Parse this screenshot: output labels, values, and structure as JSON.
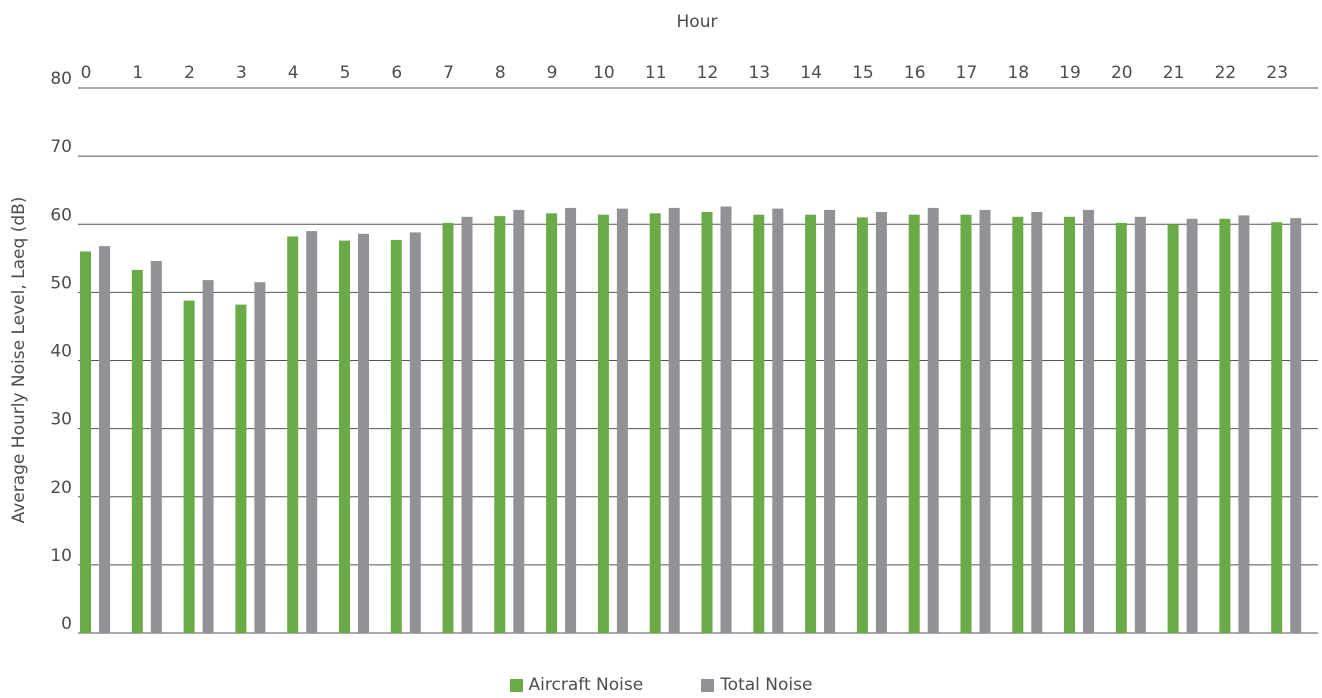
{
  "chart_data": {
    "type": "bar",
    "xlabel": "Hour",
    "ylabel": "Average Hourly Noise Level, Laeq (dB)",
    "ylim": [
      0,
      80
    ],
    "yticks": [
      0,
      10,
      20,
      30,
      40,
      50,
      60,
      70,
      80
    ],
    "grid": true,
    "legend_position": "bottom",
    "categories": [
      "0",
      "1",
      "2",
      "3",
      "4",
      "5",
      "6",
      "7",
      "8",
      "9",
      "10",
      "11",
      "12",
      "13",
      "14",
      "15",
      "16",
      "17",
      "18",
      "19",
      "20",
      "21",
      "22",
      "23"
    ],
    "series": [
      {
        "name": "Aircraft Noise",
        "color": "#6aab47",
        "values": [
          56.0,
          53.3,
          48.8,
          48.2,
          58.2,
          57.6,
          57.7,
          60.2,
          61.2,
          61.6,
          61.4,
          61.6,
          61.8,
          61.4,
          61.4,
          61.0,
          61.4,
          61.4,
          61.1,
          61.1,
          60.2,
          60.0,
          60.8,
          60.3
        ]
      },
      {
        "name": "Total Noise",
        "color": "#929296",
        "values": [
          56.8,
          54.6,
          51.8,
          51.5,
          59.0,
          58.6,
          58.8,
          61.1,
          62.1,
          62.4,
          62.3,
          62.4,
          62.6,
          62.3,
          62.1,
          61.8,
          62.4,
          62.1,
          61.8,
          62.1,
          61.1,
          60.8,
          61.3,
          60.9
        ]
      }
    ]
  }
}
